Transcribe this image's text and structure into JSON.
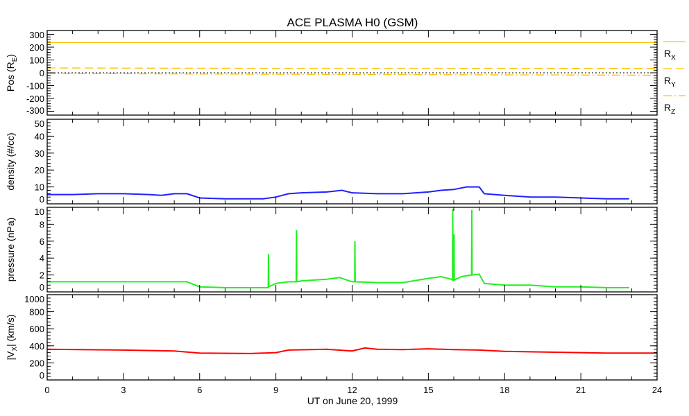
{
  "chart_data": {
    "type": "line",
    "title": "ACE PLASMA H0 (GSM)",
    "xlabel": "UT on June 20, 1999",
    "xlim": [
      0,
      24
    ],
    "xticks": [
      "0",
      "3",
      "6",
      "9",
      "12",
      "15",
      "18",
      "21",
      "24"
    ],
    "panels": [
      {
        "id": "pos",
        "ylabel": "Pos (R",
        "ylabel_sub": "E",
        "ylabel_end": ")",
        "ylim": [
          -330,
          330
        ],
        "yticks": [
          300,
          200,
          100,
          0,
          -100,
          -200,
          -300
        ],
        "zero_line": true,
        "series": [
          {
            "name": "R",
            "sub": "X",
            "color": "#ffc000",
            "dash": "",
            "x": [
              0,
              24
            ],
            "y": [
              236,
              236
            ]
          },
          {
            "name": "R",
            "sub": "Y",
            "color": "#ffc000",
            "dash": "12 6",
            "x": [
              0,
              4,
              8,
              12,
              16,
              20,
              24
            ],
            "y": [
              38,
              36,
              35,
              35,
              35,
              34,
              34
            ]
          },
          {
            "name": "R",
            "sub": "Z",
            "color": "#ffc000",
            "dash": "12 4 2 4",
            "x": [
              0,
              4,
              8,
              12,
              16,
              20,
              24
            ],
            "y": [
              -5,
              -8,
              -11,
              -13,
              -15,
              -17,
              -19
            ]
          }
        ]
      },
      {
        "id": "density",
        "ylabel": "density (#/cc)",
        "ylim": [
          0,
          50
        ],
        "yticks": [
          0,
          10,
          20,
          30,
          40,
          50
        ],
        "series": [
          {
            "name": "density",
            "color": "#2020ff",
            "x": [
              0,
              1,
              2,
              3,
              4,
              4.5,
              5,
              5.5,
              6,
              7,
              8,
              8.5,
              9,
              9.5,
              10,
              11,
              11.6,
              12,
              13,
              14,
              15,
              15.5,
              16,
              16.5,
              17,
              17.2,
              18,
              19,
              20,
              21,
              22,
              22.9
            ],
            "y": [
              5.5,
              5.5,
              6,
              6,
              5.5,
              5,
              6,
              6,
              3.5,
              3,
              3,
              3,
              4,
              6,
              6.5,
              7,
              8,
              6.5,
              6,
              6,
              7,
              8,
              8.5,
              10,
              10,
              6,
              5,
              4,
              4,
              3.5,
              3,
              3
            ]
          }
        ]
      },
      {
        "id": "pressure",
        "ylabel": "pressure (nPa)",
        "ylim": [
          0,
          10
        ],
        "yticks": [
          0,
          2,
          4,
          6,
          8,
          10
        ],
        "series": [
          {
            "name": "pressure",
            "color": "#20f020",
            "x": [
              0,
              3,
              5,
              5.5,
              6,
              7,
              8.5,
              8.7,
              8.71,
              8.72,
              9,
              9.5,
              9.8,
              9.81,
              9.82,
              10,
              11,
              11.5,
              12,
              12.1,
              12.11,
              12.12,
              13,
              14,
              15,
              15.5,
              15.9,
              15.95,
              15.96,
              15.97,
              16.0,
              16.01,
              16.02,
              16.3,
              16.7,
              16.71,
              16.72,
              17,
              17.2,
              18,
              19,
              20,
              21,
              22,
              22.9
            ],
            "y": [
              1.2,
              1.2,
              1.2,
              1.2,
              0.6,
              0.5,
              0.5,
              0.5,
              4.5,
              0.6,
              1,
              1.2,
              1.2,
              7.3,
              1.2,
              1.3,
              1.5,
              1.7,
              1.2,
              1.2,
              6.0,
              1.2,
              1.1,
              1.1,
              1.6,
              1.8,
              1.5,
              1.4,
              9.8,
              1.4,
              1.4,
              6.8,
              1.4,
              1.8,
              2.0,
              9.7,
              2.0,
              2.1,
              1,
              0.8,
              0.8,
              0.6,
              0.6,
              0.5,
              0.5
            ]
          }
        ]
      },
      {
        "id": "vx",
        "ylabel": "|V",
        "ylabel_sub": "X",
        "ylabel_end": "| (km/s)",
        "ylim": [
          0,
          1000
        ],
        "yticks": [
          0,
          200,
          400,
          600,
          800,
          1000
        ],
        "series": [
          {
            "name": "vx",
            "color": "#ff0000",
            "x": [
              0,
              3,
              5,
              6,
              8,
              9,
              9.5,
              11,
              12,
              12.5,
              13,
              14,
              15,
              16,
              17,
              18,
              20,
              22,
              24
            ],
            "y": [
              360,
              350,
              340,
              315,
              310,
              320,
              350,
              360,
              340,
              375,
              360,
              355,
              365,
              355,
              350,
              335,
              325,
              315,
              315
            ]
          }
        ]
      }
    ]
  }
}
